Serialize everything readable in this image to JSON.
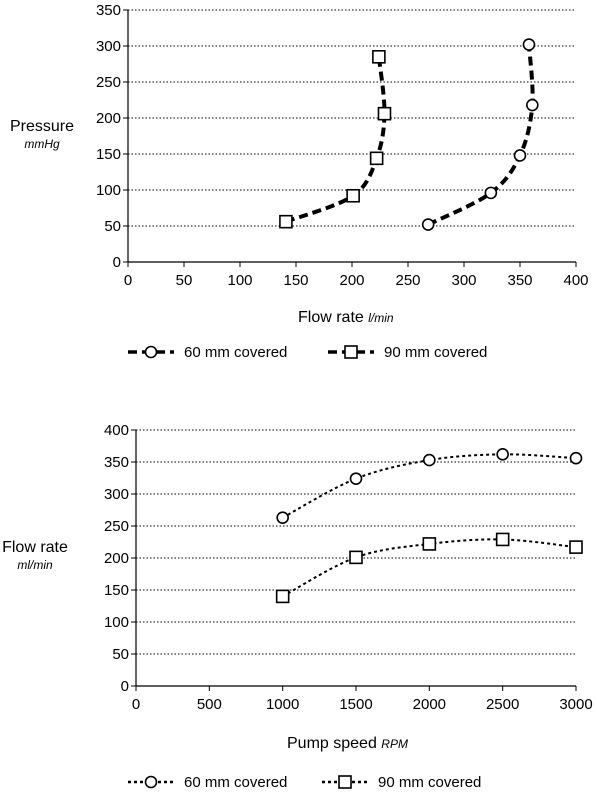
{
  "chart_data": [
    {
      "type": "line",
      "xlabel": "Flow rate",
      "xunit": "l/min",
      "ylabel": "Pressure",
      "yunit": "mmHg",
      "xlim": [
        0,
        400
      ],
      "ylim": [
        0,
        350
      ],
      "xticks": [
        "0",
        "50",
        "100",
        "150",
        "200",
        "250",
        "300",
        "350",
        "400"
      ],
      "yticks": [
        "0",
        "50",
        "100",
        "150",
        "200",
        "250",
        "300",
        "350"
      ],
      "grid": "horizontal dotted",
      "legend_position": "bottom",
      "series": [
        {
          "name": "60 mm covered",
          "marker": "circle",
          "line_style": "dashed",
          "points": [
            {
              "x": 268,
              "y": 52
            },
            {
              "x": 324,
              "y": 96
            },
            {
              "x": 350,
              "y": 148
            },
            {
              "x": 361,
              "y": 218
            },
            {
              "x": 358,
              "y": 302
            }
          ]
        },
        {
          "name": "90 mm covered",
          "marker": "square",
          "line_style": "dashed",
          "points": [
            {
              "x": 141,
              "y": 56
            },
            {
              "x": 201,
              "y": 92
            },
            {
              "x": 222,
              "y": 144
            },
            {
              "x": 229,
              "y": 206
            },
            {
              "x": 224,
              "y": 285
            }
          ]
        }
      ]
    },
    {
      "type": "line",
      "xlabel": "Pump speed",
      "xunit": "RPM",
      "ylabel": "Flow rate",
      "yunit": "ml/min",
      "xlim": [
        0,
        3000
      ],
      "ylim": [
        0,
        400
      ],
      "xticks": [
        "0",
        "500",
        "1000",
        "1500",
        "2000",
        "2500",
        "3000"
      ],
      "yticks": [
        "0",
        "50",
        "100",
        "150",
        "200",
        "250",
        "300",
        "350",
        "400"
      ],
      "grid": "horizontal dotted",
      "legend_position": "bottom",
      "series": [
        {
          "name": "60 mm covered",
          "marker": "circle",
          "line_style": "dotted",
          "points": [
            {
              "x": 1000,
              "y": 263
            },
            {
              "x": 1500,
              "y": 324
            },
            {
              "x": 2000,
              "y": 353
            },
            {
              "x": 2500,
              "y": 362
            },
            {
              "x": 3000,
              "y": 356
            }
          ]
        },
        {
          "name": "90 mm covered",
          "marker": "square",
          "line_style": "dotted",
          "points": [
            {
              "x": 1000,
              "y": 140
            },
            {
              "x": 1500,
              "y": 201
            },
            {
              "x": 2000,
              "y": 222
            },
            {
              "x": 2500,
              "y": 229
            },
            {
              "x": 3000,
              "y": 217
            }
          ]
        }
      ]
    }
  ]
}
